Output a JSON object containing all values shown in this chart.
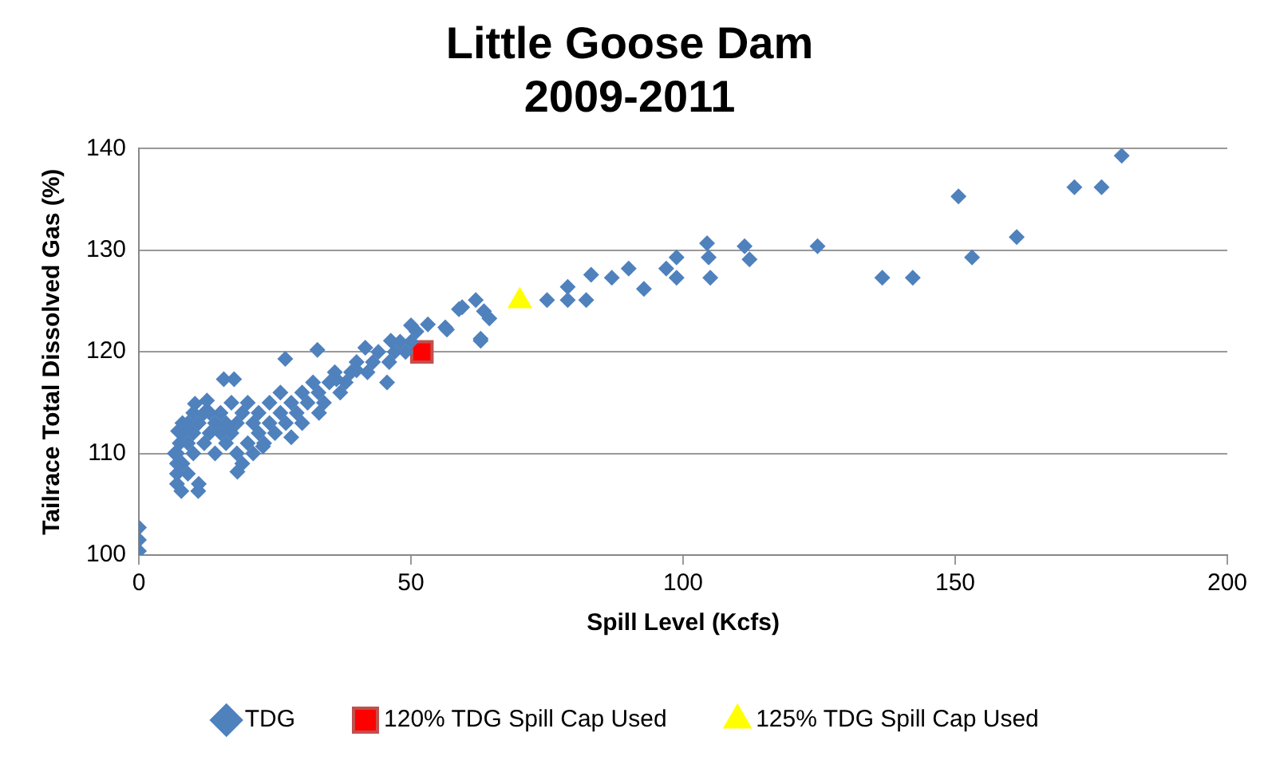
{
  "chart_data": {
    "type": "scatter",
    "title": "Little Goose Dam\n2009-2011",
    "xlabel": "Spill Level (Kcfs)",
    "ylabel": "Tailrace Total Dissolved Gas (%)",
    "xlim": [
      0,
      200
    ],
    "xticks": [
      0,
      50,
      100,
      150,
      200
    ],
    "ylim": [
      100,
      140
    ],
    "yticks": [
      100,
      110,
      120,
      130,
      140
    ],
    "grid": "y",
    "legend": "bottom",
    "series": [
      {
        "name": "TDG",
        "color": "#4f81bd",
        "marker": "diamond",
        "x": [
          0,
          0,
          0,
          6.6,
          7,
          7,
          7,
          7,
          7.2,
          7.5,
          7.8,
          8,
          8,
          8,
          9,
          9,
          9,
          10,
          10,
          10,
          10.3,
          10.9,
          11,
          11,
          12,
          12,
          12.5,
          13,
          13,
          14,
          14,
          15,
          15,
          15.6,
          16,
          16,
          17,
          17,
          17.5,
          18,
          18,
          18.1,
          19,
          19,
          20,
          20,
          21,
          21,
          22,
          22,
          22.8,
          23,
          24,
          24,
          25,
          26,
          26,
          26.9,
          27,
          28,
          28,
          29,
          30,
          30,
          31,
          32,
          32.8,
          33,
          33.1,
          34,
          35,
          36,
          36.3,
          37,
          38,
          39,
          40,
          40,
          41.6,
          42,
          43,
          44,
          45.6,
          46,
          46.3,
          47,
          48,
          49,
          50,
          50,
          51,
          53.1,
          56.3,
          56.6,
          58.8,
          59.4,
          61.9,
          62.8,
          62.8,
          63.4,
          64.4,
          75,
          78.8,
          78.8,
          82.2,
          83.1,
          86.9,
          90,
          92.8,
          96.9,
          98.8,
          98.8,
          104.4,
          104.7,
          105,
          111.3,
          112.2,
          124.7,
          136.6,
          142.2,
          150.6,
          153.1,
          161.3,
          171.9,
          176.9,
          180.6
        ],
        "values": [
          102.7,
          101.5,
          100.4,
          110,
          107,
          108,
          109,
          110,
          112.2,
          111,
          106.3,
          112,
          113,
          109,
          108,
          111,
          113,
          112,
          114,
          110,
          114.9,
          106.3,
          113,
          107,
          114,
          111,
          115.2,
          114,
          112,
          113,
          110,
          114,
          112,
          117.3,
          113,
          111,
          115,
          112,
          117.3,
          110,
          113,
          108.2,
          109,
          114,
          111,
          115,
          110,
          113,
          112,
          114,
          110.7,
          111,
          113,
          115,
          112,
          114,
          116,
          119.3,
          113,
          115,
          111.6,
          114,
          116,
          113,
          115,
          117,
          120.2,
          116,
          114,
          115,
          117,
          118,
          117.3,
          116,
          117,
          118,
          119,
          118.2,
          120.4,
          118,
          119,
          120,
          117,
          119,
          121.1,
          120,
          121,
          120,
          121,
          122.6,
          122,
          122.7,
          122.4,
          122.2,
          124.2,
          124.4,
          125.1,
          121.1,
          121.3,
          124,
          123.3,
          125.1,
          126.4,
          125.1,
          125.1,
          127.6,
          127.3,
          128.2,
          126.2,
          128.2,
          129.3,
          127.3,
          130.7,
          129.3,
          127.3,
          130.4,
          129.1,
          130.4,
          127.3,
          127.3,
          135.3,
          129.3,
          131.3,
          136.2,
          136.2,
          139.3
        ]
      },
      {
        "name": "120% TDG Spill Cap Used",
        "color": "#ff0000",
        "marker": "square",
        "x": [
          52
        ],
        "values": [
          120
        ]
      },
      {
        "name": "125% TDG Spill Cap Used",
        "color": "#ffff00",
        "marker": "triangle",
        "x": [
          70
        ],
        "values": [
          125
        ]
      }
    ]
  }
}
